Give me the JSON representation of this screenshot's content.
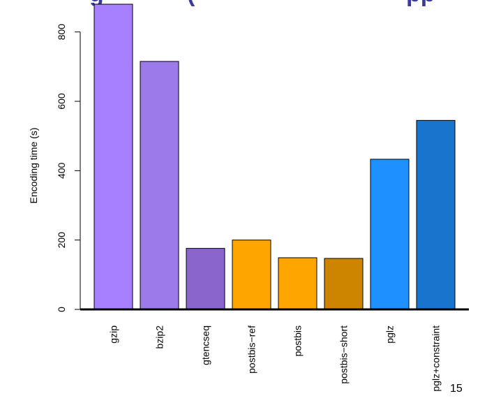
{
  "chart_data": {
    "type": "bar",
    "title": "",
    "xlabel": "",
    "ylabel": "Encoding time (s)",
    "categories": [
      "gzip",
      "bzip2",
      "gtencseq",
      "postbis−ref",
      "postbis",
      "postbis−short",
      "pglz",
      "pglz+constraint"
    ],
    "values": [
      880,
      715,
      176,
      200,
      149,
      147,
      433,
      545
    ],
    "colors": [
      "#a680ff",
      "#9c7aea",
      "#8a66cc",
      "#ffa500",
      "#ffa500",
      "#cd8500",
      "#1e90ff",
      "#1874cd"
    ],
    "yticks": [
      0,
      200,
      400,
      600,
      800
    ],
    "ylim": [
      0,
      880
    ],
    "grid": false,
    "legend": "none"
  },
  "page_number": "15"
}
